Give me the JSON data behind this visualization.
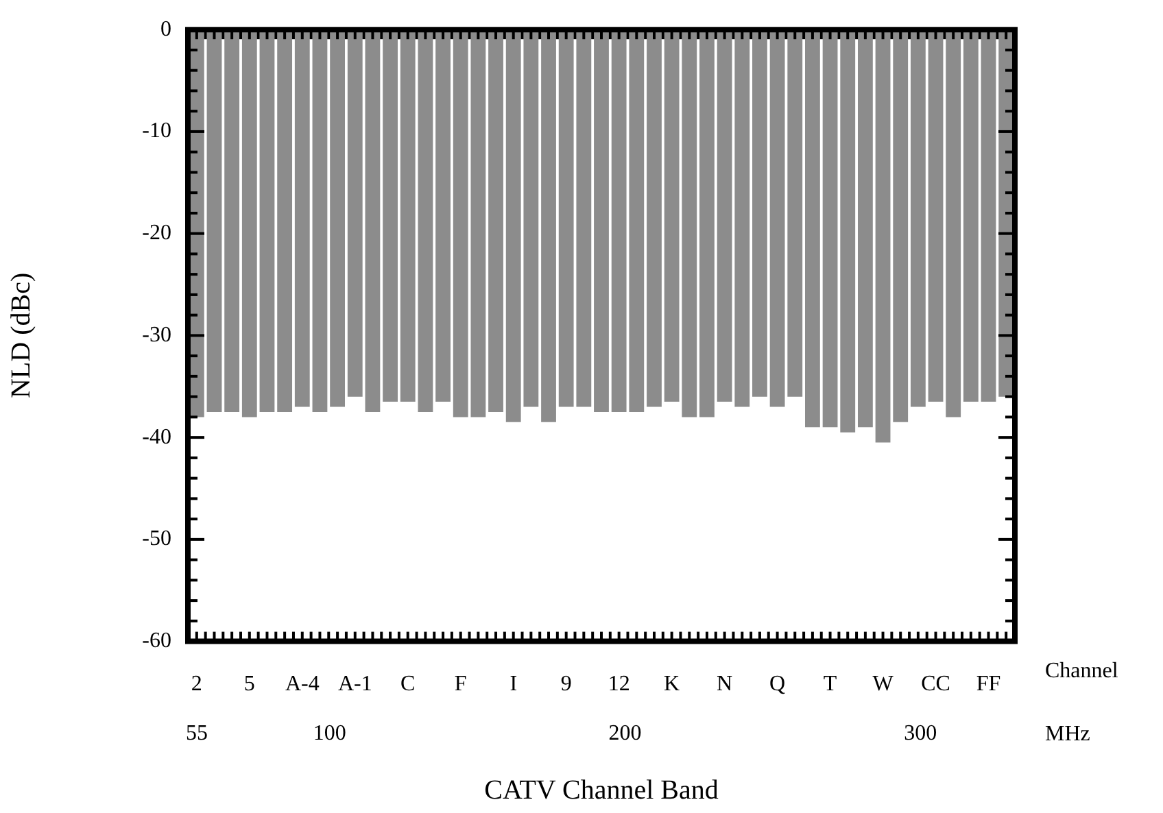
{
  "chart_data": {
    "type": "bar",
    "xlabel": "CATV Channel Band",
    "ylabel": "NLD (dBc)",
    "x2label": "MHz",
    "annotations": [
      "Channel"
    ],
    "categories": [
      "2",
      null,
      null,
      "5",
      null,
      null,
      "A-4",
      null,
      null,
      "A-1",
      null,
      null,
      "C",
      null,
      null,
      "F",
      null,
      null,
      "I",
      null,
      null,
      "9",
      null,
      null,
      "12",
      null,
      null,
      "K",
      null,
      null,
      "N",
      null,
      null,
      "Q",
      null,
      null,
      "T",
      null,
      null,
      "W",
      null,
      null,
      "CC",
      null,
      null,
      "FF",
      null
    ],
    "values": [
      -38,
      -37.5,
      -37.5,
      -38,
      -37.5,
      -37.5,
      -37,
      -37.5,
      -37,
      -36,
      -37.5,
      -36.5,
      -36.5,
      -37.5,
      -36.5,
      -38,
      -38,
      -37.5,
      -38.5,
      -37,
      -38.5,
      -37,
      -37,
      -37.5,
      -37.5,
      -37.5,
      -37,
      -36.5,
      -38,
      -38,
      -36.5,
      -37,
      -36,
      -37,
      -36,
      -39,
      -39,
      -39.5,
      -39,
      -40.5,
      -38.5,
      -37,
      -36.5,
      -38,
      -36.5,
      -36.5,
      -36
    ],
    "color": "#8c8c8c",
    "ylim": [
      -60,
      0
    ],
    "yticks": [
      -60,
      {
        "value": -58,
        "label": null
      },
      {
        "value": -56,
        "label": null
      },
      {
        "value": -54,
        "label": null
      },
      {
        "value": -52,
        "label": null
      },
      -50,
      {
        "value": -48,
        "label": null
      },
      {
        "value": -46,
        "label": null
      },
      {
        "value": -44,
        "label": null
      },
      {
        "value": -42,
        "label": null
      },
      -40,
      {
        "value": -38,
        "label": null
      },
      {
        "value": -36,
        "label": null
      },
      {
        "value": -34,
        "label": null
      },
      {
        "value": -32,
        "label": null
      },
      -30,
      {
        "value": -28,
        "label": null
      },
      {
        "value": -26,
        "label": null
      },
      {
        "value": -24,
        "label": null
      },
      {
        "value": -22,
        "label": null
      },
      -20,
      {
        "value": -18,
        "label": null
      },
      {
        "value": -16,
        "label": null
      },
      {
        "value": -14,
        "label": null
      },
      {
        "value": -12,
        "label": null
      },
      -10,
      {
        "value": -8,
        "label": null
      },
      {
        "value": -6,
        "label": null
      },
      {
        "value": -4,
        "label": null
      },
      {
        "value": -2,
        "label": null
      },
      0
    ],
    "x2lim": [
      52,
      332
    ],
    "x2ticks": [
      55,
      100,
      200,
      300
    ]
  }
}
